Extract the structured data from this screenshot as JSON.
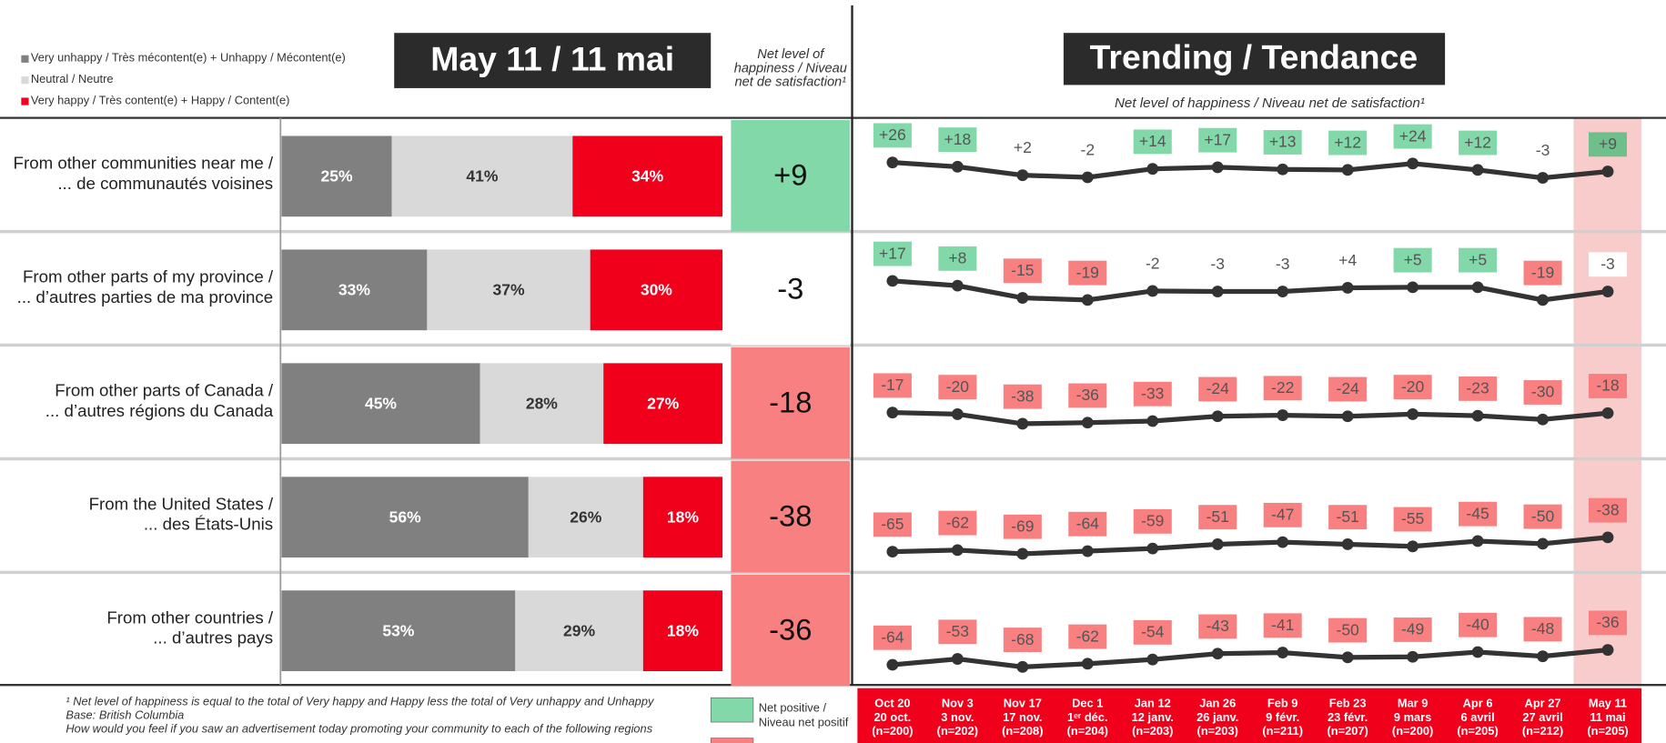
{
  "chart_data": [
    {
      "type": "bar",
      "title": "May 11 / 11 mai",
      "categories": [
        "From other communities near me /\n... de communautés voisines",
        "From other parts of my province /\n... d’autres parties de ma province",
        "From other parts of Canada /\n... d’autres régions du Canada",
        "From the United States /\n... des États-Unis",
        "From other countries /\n... d’autres pays"
      ],
      "series": [
        {
          "name": "Very unhappy / Très mécontent(e) + Unhappy / Mécontent(e)",
          "color": "#808080",
          "values": [
            25,
            33,
            45,
            56,
            53
          ],
          "value_labels": [
            "25%",
            "33%",
            "45%",
            "56%",
            "53%"
          ]
        },
        {
          "name": "Neutral / Neutre",
          "color": "#d9d9d9",
          "values": [
            41,
            37,
            28,
            26,
            29
          ],
          "value_labels": [
            "41%",
            "37%",
            "28%",
            "26%",
            "29%"
          ]
        },
        {
          "name": "Very happy / Très content(e) + Happy / Content(e)",
          "color": "#f0001a",
          "values": [
            34,
            30,
            27,
            18,
            18
          ],
          "value_labels": [
            "34%",
            "30%",
            "27%",
            "18%",
            "18%"
          ]
        }
      ],
      "xlim": [
        0,
        100
      ]
    },
    {
      "type": "net",
      "title": "Net level of happiness / Niveau net de satisfaction¹",
      "values": [
        9,
        -3,
        -18,
        -38,
        -36
      ],
      "value_labels": [
        "+9",
        "-3",
        "-18",
        "-38",
        "-36"
      ],
      "positive_color": "#82d8a8",
      "negative_color": "#f88080"
    },
    {
      "type": "line",
      "title": "Trending / Tendance",
      "subtitle": "Net level of happiness / Niveau net de satisfaction¹",
      "categories": [
        "Oct 20\n20 oct.\n(n=200)",
        "Nov 3\n3 nov.\n(n=202)",
        "Nov 17\n17 nov.\n(n=208)",
        "Dec 1\n1ᵉʳ déc.\n(n=204)",
        "Jan 12\n12 janv.\n(n=203)",
        "Jan 26\n26 janv.\n(n=203)",
        "Feb 9\n9 févr.\n(n=211)",
        "Feb 23\n23 févr.\n(n=207)",
        "Mar 9\n9 mars\n(n=200)",
        "Apr 6\n6 avril\n(n=205)",
        "Apr 27\n27 avril\n(n=212)",
        "May 11\n11 mai\n(n=205)"
      ],
      "color": "#333333",
      "positive_color": "#82d8a8",
      "negative_color": "#f88080",
      "series": [
        {
          "values": [
            26,
            18,
            2,
            -2,
            14,
            17,
            13,
            12,
            24,
            12,
            -3,
            9
          ],
          "value_labels": [
            "+26",
            "+18",
            "+2",
            "-2",
            "+14",
            "+17",
            "+13",
            "+12",
            "+24",
            "+12",
            "-3",
            "+9"
          ]
        },
        {
          "values": [
            17,
            8,
            -15,
            -19,
            -2,
            -3,
            -3,
            4,
            5,
            5,
            -19,
            -3
          ],
          "value_labels": [
            "+17",
            "+8",
            "-15",
            "-19",
            "-2",
            "-3",
            "-3",
            "+4",
            "+5",
            "+5",
            "-19",
            "-3"
          ]
        },
        {
          "values": [
            -17,
            -20,
            -38,
            -36,
            -33,
            -24,
            -22,
            -24,
            -20,
            -23,
            -30,
            -18
          ],
          "value_labels": [
            "-17",
            "-20",
            "-38",
            "-36",
            "-33",
            "-24",
            "-22",
            "-24",
            "-20",
            "-23",
            "-30",
            "-18"
          ]
        },
        {
          "values": [
            -65,
            -62,
            -69,
            -64,
            -59,
            -51,
            -47,
            -51,
            -55,
            -45,
            -50,
            -38
          ],
          "value_labels": [
            "-65",
            "-62",
            "-69",
            "-64",
            "-59",
            "-51",
            "-47",
            "-51",
            "-55",
            "-45",
            "-50",
            "-38"
          ]
        },
        {
          "values": [
            -64,
            -53,
            -68,
            -62,
            -54,
            -43,
            -41,
            -50,
            -49,
            -40,
            -48,
            -36
          ],
          "value_labels": [
            "-64",
            "-53",
            "-68",
            "-62",
            "-54",
            "-43",
            "-41",
            "-50",
            "-49",
            "-40",
            "-48",
            "-36"
          ]
        }
      ]
    }
  ],
  "footnotes": [
    "¹ Net level of happiness is equal to the total of Very happy and Happy less the total of Very unhappy and Unhappy",
    "Base: British Columbia",
    "How would you feel if you saw an advertisement today promoting your community to each of the following regions"
  ],
  "net_legend": {
    "positive": "Net positive / Niveau net positif"
  }
}
